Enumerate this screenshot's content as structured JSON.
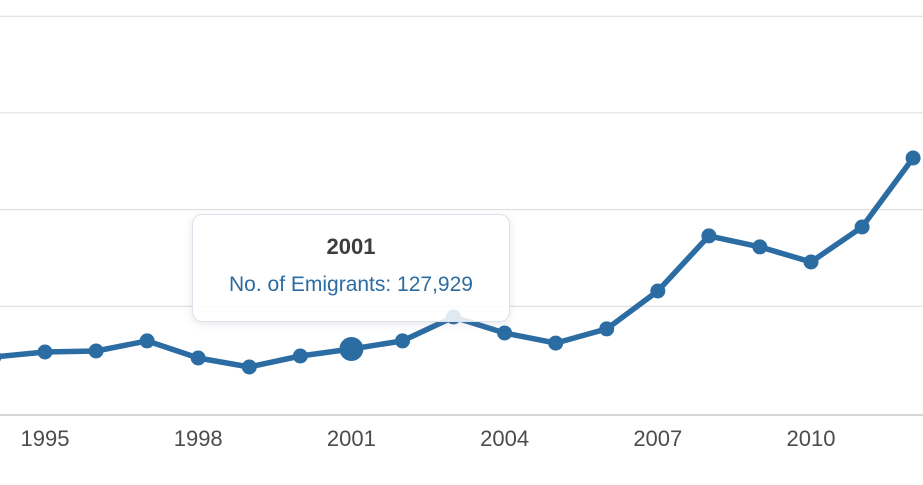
{
  "chart_data": {
    "type": "line",
    "title": "",
    "xlabel": "",
    "ylabel": "",
    "legend": "none",
    "grid": "horizontal",
    "x_ticks": [
      "1995",
      "1998",
      "2001",
      "2004",
      "2007",
      "2010"
    ],
    "x_range": [
      1994,
      2012
    ],
    "ylim": [
      93000,
      310000
    ],
    "y_gridline_values": [
      300000,
      250000,
      200000,
      150000
    ],
    "series": [
      {
        "name": "No. of Emigrants",
        "points": [
          {
            "year": 1994,
            "value": 123800
          },
          {
            "year": 1995,
            "value": 126400
          },
          {
            "year": 1996,
            "value": 126900
          },
          {
            "year": 1997,
            "value": 132100
          },
          {
            "year": 1998,
            "value": 123300
          },
          {
            "year": 1999,
            "value": 118600
          },
          {
            "year": 2000,
            "value": 124300
          },
          {
            "year": 2001,
            "value": 127929
          },
          {
            "year": 2002,
            "value": 132100
          },
          {
            "year": 2003,
            "value": 144500
          },
          {
            "year": 2004,
            "value": 136200
          },
          {
            "year": 2005,
            "value": 131000
          },
          {
            "year": 2006,
            "value": 138300
          },
          {
            "year": 2007,
            "value": 157900
          },
          {
            "year": 2008,
            "value": 186400
          },
          {
            "year": 2009,
            "value": 180700
          },
          {
            "year": 2010,
            "value": 172900
          },
          {
            "year": 2011,
            "value": 191000
          },
          {
            "year": 2012,
            "value": 226700
          }
        ]
      }
    ],
    "highlight": {
      "year": 2001,
      "value": 127929
    },
    "colors": {
      "line": "#2b6ca3",
      "marker": "#2b6ca3",
      "grid": "#dadada",
      "axis": "#bdbdbd",
      "tick_label": "#4c4c4c",
      "tooltip_title": "#3d3d3d",
      "tooltip_text": "#2b6ca3",
      "tooltip_border": "#dce3ec"
    }
  },
  "tooltip": {
    "title": "2001",
    "label": "No. of Emigrants: 127,929"
  }
}
